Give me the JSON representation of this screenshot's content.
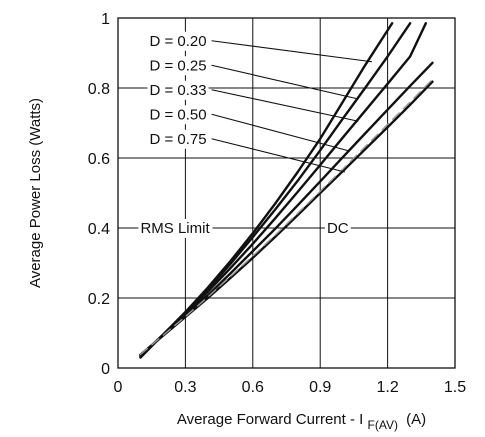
{
  "chart_data": {
    "type": "line",
    "title": "",
    "xlabel_main": "Average Forward Current - I",
    "xlabel_sub": "F(AV)",
    "xlabel_unit": "(A)",
    "ylabel": "Average Power Loss (Watts)",
    "xlim": [
      0,
      1.5
    ],
    "ylim": [
      0,
      1
    ],
    "xticks": [
      "0",
      "0.3",
      "0.6",
      "0.9",
      "1.2",
      "1.5"
    ],
    "yticks": [
      "0",
      "0.2",
      "0.4",
      "0.6",
      "0.8",
      "1"
    ],
    "grid": true,
    "series": [
      {
        "name": "D = 0.20",
        "dashed": false,
        "x": [
          0.1,
          0.2,
          0.3,
          0.4,
          0.5,
          0.6,
          0.7,
          0.8,
          0.9,
          1.0,
          1.1,
          1.22
        ],
        "y": [
          0.03,
          0.095,
          0.16,
          0.23,
          0.305,
          0.385,
          0.47,
          0.56,
          0.655,
          0.76,
          0.865,
          0.985
        ]
      },
      {
        "name": "D = 0.25",
        "dashed": false,
        "x": [
          0.1,
          0.2,
          0.3,
          0.4,
          0.5,
          0.6,
          0.7,
          0.8,
          0.9,
          1.0,
          1.1,
          1.2,
          1.3
        ],
        "y": [
          0.032,
          0.095,
          0.158,
          0.225,
          0.297,
          0.374,
          0.453,
          0.535,
          0.622,
          0.712,
          0.8,
          0.89,
          0.985
        ]
      },
      {
        "name": "D = 0.33",
        "dashed": false,
        "x": [
          0.1,
          0.2,
          0.3,
          0.4,
          0.5,
          0.6,
          0.7,
          0.8,
          0.9,
          1.0,
          1.1,
          1.2,
          1.3,
          1.37
        ],
        "y": [
          0.034,
          0.095,
          0.155,
          0.218,
          0.285,
          0.355,
          0.428,
          0.503,
          0.58,
          0.658,
          0.735,
          0.812,
          0.89,
          0.985
        ]
      },
      {
        "name": "D = 0.50",
        "dashed": false,
        "x": [
          0.1,
          0.2,
          0.3,
          0.4,
          0.5,
          0.6,
          0.7,
          0.8,
          0.9,
          1.0,
          1.1,
          1.2,
          1.3,
          1.4
        ],
        "y": [
          0.036,
          0.093,
          0.15,
          0.208,
          0.27,
          0.334,
          0.398,
          0.465,
          0.533,
          0.602,
          0.67,
          0.738,
          0.806,
          0.872
        ]
      },
      {
        "name": "D = 0.75",
        "dashed": false,
        "x": [
          0.1,
          0.2,
          0.3,
          0.4,
          0.5,
          0.6,
          0.7,
          0.8,
          0.9,
          1.0,
          1.1,
          1.2,
          1.3,
          1.4
        ],
        "y": [
          0.038,
          0.092,
          0.146,
          0.2,
          0.257,
          0.315,
          0.375,
          0.437,
          0.5,
          0.562,
          0.625,
          0.688,
          0.752,
          0.818
        ]
      },
      {
        "name": "DC",
        "dashed": true,
        "x": [
          0.1,
          0.2,
          0.3,
          0.4,
          0.5,
          0.6,
          0.7,
          0.8,
          0.9,
          1.0,
          1.1,
          1.2,
          1.3,
          1.4
        ],
        "y": [
          0.039,
          0.093,
          0.147,
          0.203,
          0.261,
          0.32,
          0.38,
          0.442,
          0.505,
          0.568,
          0.632,
          0.696,
          0.76,
          0.825
        ]
      }
    ],
    "annotations": [
      {
        "text": "D = 0.20",
        "label_x": 0.14,
        "label_y": 0.935,
        "point_x": 1.13,
        "point_y": 0.875
      },
      {
        "text": "D = 0.25",
        "label_x": 0.14,
        "label_y": 0.865,
        "point_x": 1.06,
        "point_y": 0.77
      },
      {
        "text": "D = 0.33",
        "label_x": 0.14,
        "label_y": 0.795,
        "point_x": 1.07,
        "point_y": 0.705
      },
      {
        "text": "D = 0.50",
        "label_x": 0.14,
        "label_y": 0.725,
        "point_x": 1.03,
        "point_y": 0.62
      },
      {
        "text": "D = 0.75",
        "label_x": 0.14,
        "label_y": 0.655,
        "point_x": 1.01,
        "point_y": 0.56
      },
      {
        "text": "RMS Limit",
        "label_x": 0.1,
        "label_y": 0.4,
        "point_x": 0.63,
        "point_y": 0.4
      },
      {
        "text": "DC",
        "label_x": 0.93,
        "label_y": 0.4,
        "point_x": 1.3,
        "point_y": 0.4
      }
    ]
  }
}
